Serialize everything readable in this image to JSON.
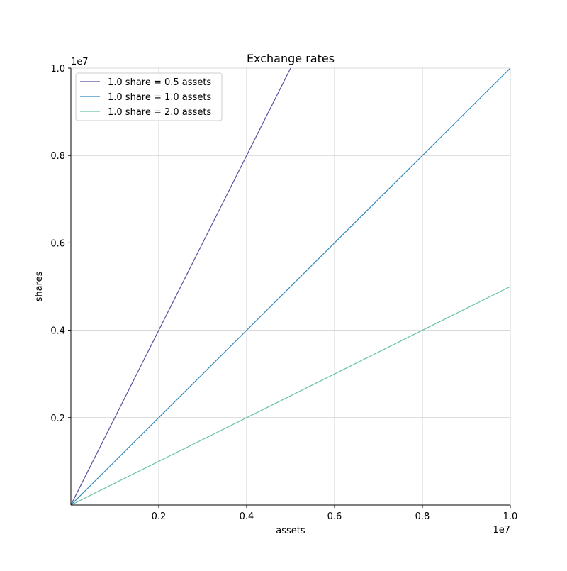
{
  "chart_data": {
    "type": "line",
    "title": "Exchange rates",
    "xlabel": "assets",
    "ylabel": "shares",
    "x_offset_label": "1e7",
    "y_offset_label": "1e7",
    "xlim": [
      0,
      10000000
    ],
    "ylim": [
      0,
      10000000
    ],
    "x_ticks": [
      2000000,
      4000000,
      6000000,
      8000000,
      10000000
    ],
    "x_tick_labels": [
      "0.2",
      "0.4",
      "0.6",
      "0.8",
      "1.0"
    ],
    "y_ticks": [
      2000000,
      4000000,
      6000000,
      8000000,
      10000000
    ],
    "y_tick_labels": [
      "0.2",
      "0.4",
      "0.6",
      "0.8",
      "1.0"
    ],
    "grid": true,
    "legend_position": "top-left",
    "series": [
      {
        "name": "1.0 share = 0.5 assets",
        "color": "#5e4fa2",
        "x": [
          0,
          5000000
        ],
        "y": [
          0,
          10000000
        ]
      },
      {
        "name": "1.0 share = 1.0 assets",
        "color": "#3288bd",
        "x": [
          0,
          10000000
        ],
        "y": [
          0,
          10000000
        ]
      },
      {
        "name": "1.0 share = 2.0 assets",
        "color": "#66c2a5",
        "x": [
          0,
          10000000
        ],
        "y": [
          0,
          5000000
        ]
      }
    ]
  }
}
